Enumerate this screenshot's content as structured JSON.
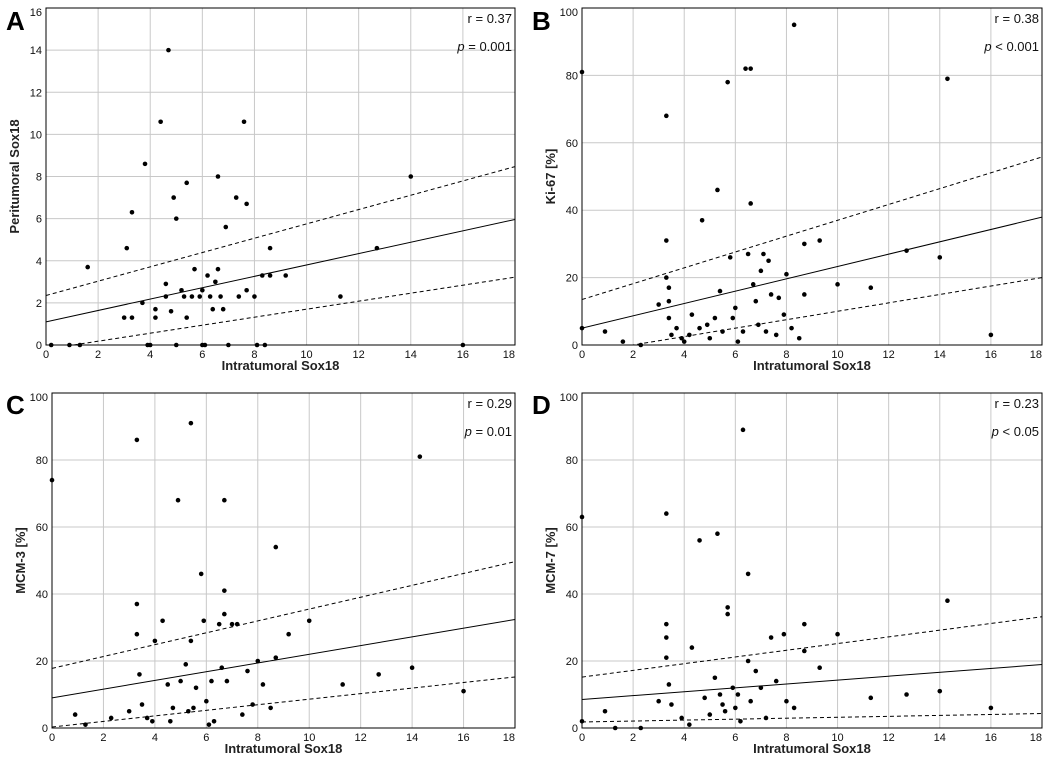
{
  "chart_data": [
    {
      "type": "scatter",
      "panel": "A",
      "xlabel": "Intratumoral Sox18",
      "ylabel": "Peritumoral Sox18",
      "xlim": [
        0,
        18
      ],
      "ylim": [
        0,
        16
      ],
      "xticks": [
        "0",
        "2",
        "4",
        "6",
        "8",
        "10",
        "12",
        "14",
        "16",
        "18"
      ],
      "yticks": [
        "0",
        "2",
        "4",
        "6",
        "8",
        "10",
        "12",
        "14",
        "16"
      ],
      "grid": true,
      "r_label": "r = 0.37",
      "p_label_italic": "p",
      "p_label_rest": " = 0.001",
      "fit": {
        "intercept": 1.1,
        "slope": 0.27
      },
      "ci_upper": {
        "intercept": 2.35,
        "slope": 0.34
      },
      "ci_lower": {
        "intercept": -0.2,
        "slope": 0.19
      },
      "points": [
        [
          0.2,
          0
        ],
        [
          0.9,
          0
        ],
        [
          1.3,
          0
        ],
        [
          1.6,
          3.7
        ],
        [
          3.1,
          4.6
        ],
        [
          3.3,
          6.3
        ],
        [
          3.0,
          1.3
        ],
        [
          3.3,
          1.3
        ],
        [
          3.7,
          2.0
        ],
        [
          3.8,
          8.6
        ],
        [
          4.0,
          0
        ],
        [
          4.2,
          1.3
        ],
        [
          4.2,
          1.7
        ],
        [
          4.4,
          10.6
        ],
        [
          4.6,
          2.3
        ],
        [
          4.6,
          2.9
        ],
        [
          4.7,
          14.0
        ],
        [
          4.8,
          1.6
        ],
        [
          4.9,
          7.0
        ],
        [
          5.0,
          6.0
        ],
        [
          5.0,
          0
        ],
        [
          5.2,
          2.6
        ],
        [
          5.4,
          7.7
        ],
        [
          5.4,
          1.3
        ],
        [
          5.6,
          2.3
        ],
        [
          5.7,
          3.6
        ],
        [
          5.9,
          2.3
        ],
        [
          6.0,
          2.6
        ],
        [
          6.0,
          0
        ],
        [
          6.2,
          3.3
        ],
        [
          6.3,
          2.3
        ],
        [
          6.4,
          1.7
        ],
        [
          6.5,
          3.0
        ],
        [
          6.6,
          3.6
        ],
        [
          6.6,
          8.0
        ],
        [
          6.7,
          2.3
        ],
        [
          6.8,
          1.7
        ],
        [
          6.9,
          5.6
        ],
        [
          7.0,
          0
        ],
        [
          7.3,
          7.0
        ],
        [
          7.4,
          2.3
        ],
        [
          7.6,
          10.6
        ],
        [
          7.7,
          6.7
        ],
        [
          7.7,
          2.6
        ],
        [
          8.0,
          2.3
        ],
        [
          8.1,
          0
        ],
        [
          8.3,
          3.3
        ],
        [
          8.4,
          0
        ],
        [
          8.6,
          3.3
        ],
        [
          8.6,
          4.6
        ],
        [
          9.2,
          3.3
        ],
        [
          11.3,
          2.3
        ],
        [
          12.7,
          4.6
        ],
        [
          14.0,
          8.0
        ],
        [
          16.0,
          0
        ],
        [
          6.1,
          0
        ],
        [
          3.9,
          0
        ],
        [
          5.3,
          2.3
        ]
      ]
    },
    {
      "type": "scatter",
      "panel": "B",
      "xlabel": "Intratumoral Sox18",
      "ylabel": "Ki-67 [%]",
      "xlim": [
        0,
        18
      ],
      "ylim": [
        0,
        100
      ],
      "xticks": [
        "0",
        "2",
        "4",
        "6",
        "8",
        "10",
        "12",
        "14",
        "16",
        "18"
      ],
      "yticks": [
        "0",
        "20",
        "40",
        "60",
        "80",
        "100"
      ],
      "grid": true,
      "r_label": "r = 0.38",
      "p_label_italic": "p",
      "p_label_rest": " < 0.001",
      "fit": {
        "intercept": 5.0,
        "slope": 1.83
      },
      "ci_upper": {
        "intercept": 13.5,
        "slope": 2.35
      },
      "ci_lower": {
        "intercept": -2.5,
        "slope": 1.25
      },
      "points": [
        [
          0,
          81
        ],
        [
          0,
          5
        ],
        [
          0.9,
          4
        ],
        [
          1.6,
          1
        ],
        [
          2.3,
          0
        ],
        [
          3.0,
          12
        ],
        [
          3.3,
          68
        ],
        [
          3.3,
          31
        ],
        [
          3.3,
          20
        ],
        [
          3.4,
          17
        ],
        [
          3.4,
          13
        ],
        [
          3.4,
          8
        ],
        [
          3.5,
          3
        ],
        [
          3.7,
          5
        ],
        [
          3.9,
          2
        ],
        [
          4.2,
          3
        ],
        [
          4.3,
          9
        ],
        [
          4.6,
          5
        ],
        [
          4.7,
          37
        ],
        [
          4.9,
          6
        ],
        [
          5.0,
          2
        ],
        [
          5.2,
          8
        ],
        [
          5.3,
          46
        ],
        [
          5.4,
          16
        ],
        [
          5.5,
          4
        ],
        [
          5.7,
          78
        ],
        [
          5.8,
          26
        ],
        [
          6.0,
          11
        ],
        [
          6.1,
          1
        ],
        [
          6.3,
          4
        ],
        [
          6.4,
          82
        ],
        [
          6.5,
          27
        ],
        [
          6.6,
          82
        ],
        [
          6.6,
          42
        ],
        [
          6.7,
          18
        ],
        [
          6.8,
          13
        ],
        [
          7.0,
          22
        ],
        [
          7.1,
          27
        ],
        [
          7.2,
          4
        ],
        [
          7.3,
          25
        ],
        [
          7.4,
          15
        ],
        [
          7.6,
          3
        ],
        [
          7.7,
          14
        ],
        [
          7.9,
          9
        ],
        [
          8.0,
          21
        ],
        [
          8.2,
          5
        ],
        [
          8.3,
          95
        ],
        [
          8.5,
          2
        ],
        [
          8.7,
          30
        ],
        [
          8.7,
          15
        ],
        [
          9.3,
          31
        ],
        [
          10.0,
          18
        ],
        [
          11.3,
          17
        ],
        [
          12.7,
          28
        ],
        [
          14.0,
          26
        ],
        [
          14.3,
          79
        ],
        [
          16.0,
          3
        ],
        [
          5.9,
          8
        ],
        [
          4.0,
          1
        ],
        [
          6.9,
          6
        ]
      ]
    },
    {
      "type": "scatter",
      "panel": "C",
      "xlabel": "Intratumoral Sox18",
      "ylabel": "MCM-3 [%]",
      "xlim": [
        0,
        18
      ],
      "ylim": [
        0,
        100
      ],
      "xticks": [
        "0",
        "2",
        "4",
        "6",
        "8",
        "10",
        "12",
        "14",
        "16",
        "18"
      ],
      "yticks": [
        "0",
        "20",
        "40",
        "60",
        "80",
        "100"
      ],
      "grid": true,
      "r_label": "r = 0.29",
      "p_label_italic": "p",
      "p_label_rest": " = 0.01",
      "fit": {
        "intercept": 9.0,
        "slope": 1.3
      },
      "ci_upper": {
        "intercept": 17.8,
        "slope": 1.77
      },
      "ci_lower": {
        "intercept": 0.3,
        "slope": 0.83
      },
      "points": [
        [
          0,
          74
        ],
        [
          0.9,
          4
        ],
        [
          1.3,
          1
        ],
        [
          2.3,
          3
        ],
        [
          3.0,
          5
        ],
        [
          3.3,
          86
        ],
        [
          3.3,
          37
        ],
        [
          3.3,
          28
        ],
        [
          3.4,
          16
        ],
        [
          3.5,
          7
        ],
        [
          3.7,
          3
        ],
        [
          4.0,
          26
        ],
        [
          4.3,
          32
        ],
        [
          4.6,
          2
        ],
        [
          4.7,
          6
        ],
        [
          4.9,
          68
        ],
        [
          5.0,
          14
        ],
        [
          5.2,
          19
        ],
        [
          5.3,
          5
        ],
        [
          5.4,
          91
        ],
        [
          5.4,
          26
        ],
        [
          5.6,
          12
        ],
        [
          5.8,
          46
        ],
        [
          5.9,
          32
        ],
        [
          6.0,
          8
        ],
        [
          6.2,
          14
        ],
        [
          6.3,
          2
        ],
        [
          6.5,
          31
        ],
        [
          6.6,
          18
        ],
        [
          6.7,
          68
        ],
        [
          6.7,
          41
        ],
        [
          6.7,
          34
        ],
        [
          6.8,
          14
        ],
        [
          7.0,
          31
        ],
        [
          7.2,
          31
        ],
        [
          7.4,
          4
        ],
        [
          7.6,
          17
        ],
        [
          7.8,
          7
        ],
        [
          8.0,
          20
        ],
        [
          8.2,
          13
        ],
        [
          8.5,
          6
        ],
        [
          8.7,
          54
        ],
        [
          8.7,
          21
        ],
        [
          9.2,
          28
        ],
        [
          10.0,
          32
        ],
        [
          11.3,
          13
        ],
        [
          12.7,
          16
        ],
        [
          14.0,
          18
        ],
        [
          14.3,
          81
        ],
        [
          16.0,
          11
        ],
        [
          5.5,
          6
        ],
        [
          4.5,
          13
        ],
        [
          6.1,
          1
        ],
        [
          3.9,
          2
        ]
      ]
    },
    {
      "type": "scatter",
      "panel": "D",
      "xlabel": "Intratumoral Sox18",
      "ylabel": "MCM-7 [%]",
      "xlim": [
        0,
        18
      ],
      "ylim": [
        0,
        100
      ],
      "xticks": [
        "0",
        "2",
        "4",
        "6",
        "8",
        "10",
        "12",
        "14",
        "16",
        "18"
      ],
      "yticks": [
        "0",
        "20",
        "40",
        "60",
        "80",
        "100"
      ],
      "grid": true,
      "r_label": "r = 0.23",
      "p_label_italic": "p",
      "p_label_rest": " < 0.05",
      "fit": {
        "intercept": 8.5,
        "slope": 0.58
      },
      "ci_upper": {
        "intercept": 15.2,
        "slope": 1.0
      },
      "ci_lower": {
        "intercept": 1.8,
        "slope": 0.14
      },
      "points": [
        [
          0,
          63
        ],
        [
          0,
          2
        ],
        [
          0.9,
          5
        ],
        [
          1.3,
          0
        ],
        [
          2.3,
          0
        ],
        [
          3.0,
          8
        ],
        [
          3.3,
          64
        ],
        [
          3.3,
          31
        ],
        [
          3.3,
          27
        ],
        [
          3.3,
          21
        ],
        [
          3.4,
          13
        ],
        [
          3.5,
          7
        ],
        [
          3.9,
          3
        ],
        [
          4.2,
          1
        ],
        [
          4.3,
          24
        ],
        [
          4.6,
          56
        ],
        [
          4.8,
          9
        ],
        [
          5.0,
          4
        ],
        [
          5.2,
          15
        ],
        [
          5.3,
          58
        ],
        [
          5.4,
          10
        ],
        [
          5.6,
          5
        ],
        [
          5.7,
          36
        ],
        [
          5.7,
          34
        ],
        [
          5.9,
          12
        ],
        [
          6.0,
          6
        ],
        [
          6.2,
          2
        ],
        [
          6.3,
          89
        ],
        [
          6.5,
          46
        ],
        [
          6.5,
          20
        ],
        [
          6.6,
          8
        ],
        [
          6.8,
          17
        ],
        [
          7.0,
          12
        ],
        [
          7.2,
          3
        ],
        [
          7.4,
          27
        ],
        [
          7.6,
          14
        ],
        [
          7.9,
          28
        ],
        [
          8.0,
          8
        ],
        [
          8.3,
          6
        ],
        [
          8.7,
          31
        ],
        [
          8.7,
          23
        ],
        [
          9.3,
          18
        ],
        [
          10.0,
          28
        ],
        [
          11.3,
          9
        ],
        [
          12.7,
          10
        ],
        [
          14.0,
          11
        ],
        [
          14.3,
          38
        ],
        [
          16.0,
          6
        ],
        [
          5.5,
          7
        ],
        [
          6.1,
          10
        ]
      ]
    }
  ]
}
